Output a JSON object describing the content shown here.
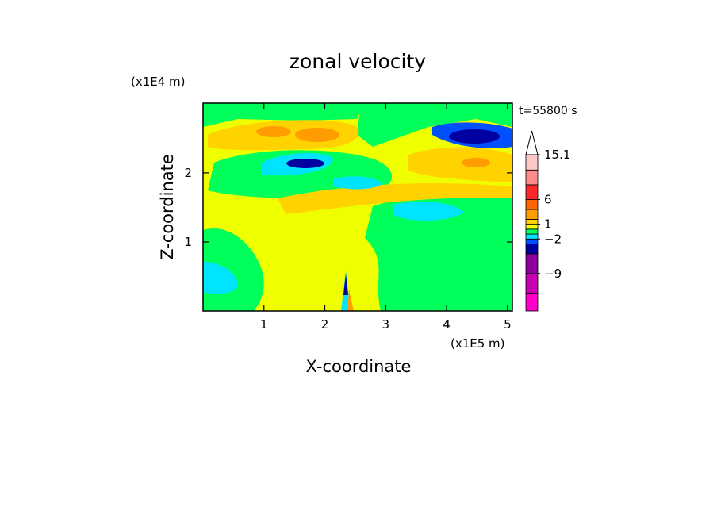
{
  "chart_data": {
    "type": "contour",
    "title": "zonal velocity",
    "xlabel": "X-coordinate",
    "ylabel": "Z-coordinate",
    "x_unit": "(x1E5 m)",
    "y_unit": "(x1E4 m)",
    "annotation": "t=55800 s",
    "xlim": [
      0,
      5.08
    ],
    "xticks": [
      1,
      2,
      3,
      4,
      5
    ],
    "ylim": [
      0,
      3.01
    ],
    "yticks": [
      1,
      2
    ],
    "colorbar": {
      "levels": [
        -16.6,
        -13,
        -9,
        -5,
        -3,
        -2,
        -1,
        0,
        1,
        2,
        4,
        6,
        9,
        12,
        15.1
      ],
      "colors": [
        "#ff00c8",
        "#c800b4",
        "#8c00a0",
        "#0000a0",
        "#0050ff",
        "#00e4ff",
        "#00ff5a",
        "#f0ff00",
        "#ffd200",
        "#ff9c00",
        "#ff6400",
        "#ff2828",
        "#ff8c8c",
        "#ffc8c8"
      ],
      "ticks": [
        {
          "value": 15.1,
          "label": "15.1"
        },
        6,
        1,
        {
          "value": -2,
          "label": "−2"
        },
        {
          "value": -9,
          "label": "−9"
        }
      ]
    }
  }
}
